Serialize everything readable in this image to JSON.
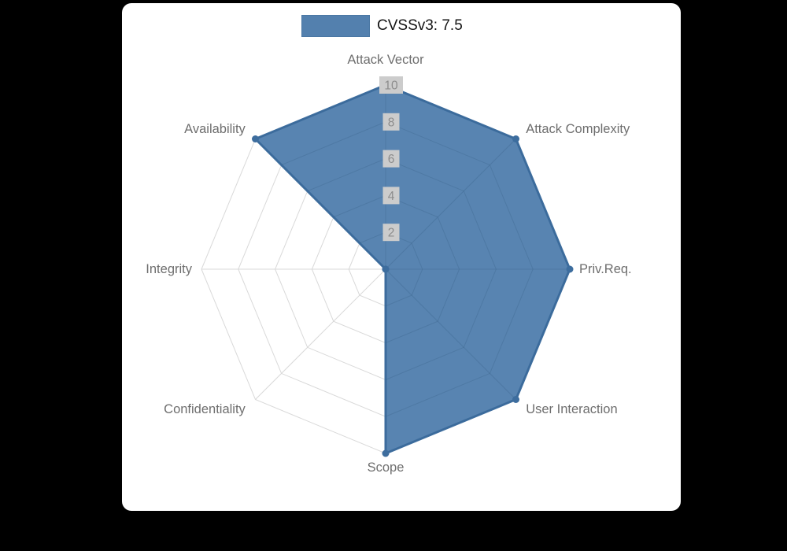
{
  "page": {
    "background": "#000000",
    "panel_background": "#ffffff"
  },
  "legend": {
    "label": "CVSSv3: 7.5"
  },
  "chart_data": {
    "type": "radar",
    "title": "",
    "legend_position": "top",
    "legend_entries": [
      "CVSSv3: 7.5"
    ],
    "categories": [
      "Attack Vector",
      "Attack Complexity",
      "Priv.Req.",
      "User Interaction",
      "Scope",
      "Confidentiality",
      "Integrity",
      "Availability"
    ],
    "series": [
      {
        "name": "CVSSv3: 7.5",
        "values": [
          10,
          10,
          10,
          10,
          10,
          0,
          0,
          10
        ]
      }
    ],
    "rticks": [
      2,
      4,
      6,
      8,
      10
    ],
    "rmax": 10,
    "grid": true,
    "grid_shape": "polygon",
    "colors": {
      "fill": "#4677a8",
      "fill_opacity": 0.9,
      "stroke": "#3d6d9e",
      "point": "#3d6d9e",
      "grid": "#d9d9d9",
      "grid_overlay": "#2e4f72",
      "axis_label": "#6e6e6e",
      "tick_label": "#8c8c8c",
      "tick_backdrop": "#cccccc",
      "legend_text": "#151515"
    }
  }
}
